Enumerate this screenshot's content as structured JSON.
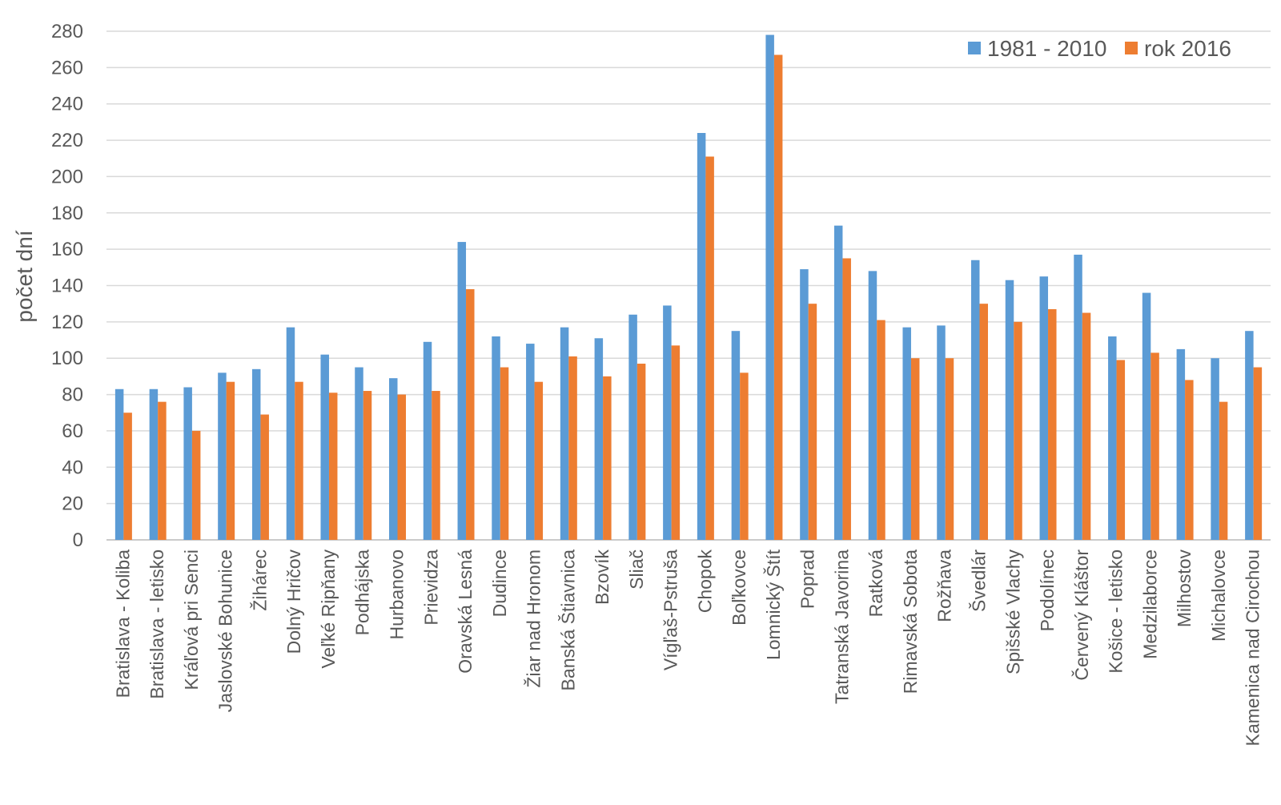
{
  "chart_data": {
    "type": "bar",
    "title": "",
    "xlabel": "",
    "ylabel": "počet dní",
    "ylim": [
      0,
      280
    ],
    "yticks": [
      0,
      20,
      40,
      60,
      80,
      100,
      120,
      140,
      160,
      180,
      200,
      220,
      240,
      260,
      280
    ],
    "grid": true,
    "legend_position": "top-right",
    "categories": [
      "Bratislava - Koliba",
      "Bratislava - letisko",
      "Kráľová pri Senci",
      "Jaslovské Bohunice",
      "Žihárec",
      "Dolný Hričov",
      "Veľké Ripňany",
      "Podhájska",
      "Hurbanovo",
      "Prievidza",
      "Oravská Lesná",
      "Dudince",
      "Žiar nad Hronom",
      "Banská Štiavnica",
      "Bzovík",
      "Sliač",
      "Vígľaš-Pstruša",
      "Chopok",
      "Boľkovce",
      "Lomnický Štít",
      "Poprad",
      "Tatranská Javorina",
      "Ratková",
      "Rimavská Sobota",
      "Rožňava",
      "Švedlár",
      "Spišské Vlachy",
      "Podolínec",
      "Červený Kláštor",
      "Košice - letisko",
      "Medzilaborce",
      "Milhostov",
      "Michalovce",
      "Kamenica nad Cirochou"
    ],
    "series": [
      {
        "name": "1981 - 2010",
        "color": "#5b9bd5",
        "values": [
          83,
          83,
          84,
          92,
          94,
          117,
          102,
          95,
          89,
          109,
          164,
          112,
          108,
          117,
          111,
          124,
          129,
          224,
          115,
          278,
          149,
          173,
          148,
          117,
          118,
          154,
          143,
          145,
          157,
          112,
          136,
          105,
          100,
          115
        ]
      },
      {
        "name": "rok 2016",
        "color": "#ed7d31",
        "values": [
          70,
          76,
          60,
          87,
          69,
          87,
          81,
          82,
          80,
          82,
          138,
          95,
          87,
          101,
          90,
          97,
          107,
          211,
          92,
          267,
          130,
          155,
          121,
          100,
          100,
          130,
          120,
          127,
          125,
          99,
          103,
          88,
          76,
          95
        ]
      }
    ]
  }
}
